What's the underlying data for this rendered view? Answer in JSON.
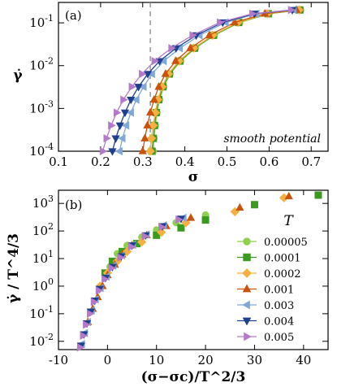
{
  "chart_data": [
    {
      "type": "line",
      "panel_label": "(a)",
      "annotation": "smooth potential",
      "xlabel": "σ",
      "ylabel": "γ̇",
      "x_scale": "linear",
      "y_scale": "log",
      "xlim": [
        0.1,
        0.74
      ],
      "ylim": [
        0.0001,
        0.3
      ],
      "x_ticks": [
        "0.1",
        "0.2",
        "0.3",
        "0.4",
        "0.5",
        "0.6",
        "0.7"
      ],
      "y_ticks": [
        "10^-4",
        "10^-3",
        "10^-2",
        "10^-1"
      ],
      "dashed_vline_x": 0.318,
      "series": [
        {
          "name": "0.00005",
          "color": "#8fd14f",
          "marker": "circle",
          "x": [
            0.325,
            0.327,
            0.33,
            0.334,
            0.34,
            0.35,
            0.365,
            0.39,
            0.425,
            0.47,
            0.53,
            0.6,
            0.675
          ],
          "y": [
            0.0001,
            0.0002,
            0.0004,
            0.0008,
            0.0016,
            0.0032,
            0.0064,
            0.0128,
            0.0256,
            0.0512,
            0.1024,
            0.1638,
            0.2
          ]
        },
        {
          "name": "0.0001",
          "color": "#3a9a1e",
          "marker": "square",
          "x": [
            0.322,
            0.325,
            0.328,
            0.332,
            0.338,
            0.348,
            0.363,
            0.388,
            0.423,
            0.468,
            0.528,
            0.598,
            0.673
          ],
          "y": [
            0.0001,
            0.0002,
            0.0004,
            0.0008,
            0.0016,
            0.0032,
            0.0064,
            0.0128,
            0.0256,
            0.0512,
            0.1024,
            0.1638,
            0.2
          ]
        },
        {
          "name": "0.0002",
          "color": "#f5b041",
          "marker": "diamond",
          "x": [
            0.318,
            0.321,
            0.325,
            0.33,
            0.336,
            0.346,
            0.361,
            0.386,
            0.421,
            0.466,
            0.526,
            0.596,
            0.671
          ],
          "y": [
            0.0001,
            0.0002,
            0.0004,
            0.0008,
            0.0016,
            0.0032,
            0.0064,
            0.0128,
            0.0256,
            0.0512,
            0.1024,
            0.1638,
            0.2
          ]
        },
        {
          "name": "0.001",
          "color": "#c8520e",
          "marker": "triangle-up",
          "x": [
            0.3,
            0.305,
            0.311,
            0.318,
            0.327,
            0.338,
            0.354,
            0.378,
            0.413,
            0.458,
            0.518,
            0.59,
            0.665
          ],
          "y": [
            0.0001,
            0.0002,
            0.0004,
            0.0008,
            0.0016,
            0.0032,
            0.0064,
            0.0128,
            0.0256,
            0.0512,
            0.1024,
            0.1638,
            0.2
          ]
        },
        {
          "name": "0.003",
          "color": "#7fa8d6",
          "marker": "triangle-left",
          "x": [
            0.245,
            0.252,
            0.261,
            0.272,
            0.285,
            0.302,
            0.322,
            0.35,
            0.388,
            0.435,
            0.497,
            0.57,
            0.658
          ],
          "y": [
            0.0001,
            0.0002,
            0.0004,
            0.0008,
            0.0016,
            0.0032,
            0.0064,
            0.0128,
            0.0256,
            0.0512,
            0.1024,
            0.1638,
            0.2
          ]
        },
        {
          "name": "0.004",
          "color": "#1f3f8f",
          "marker": "triangle-down",
          "x": [
            0.228,
            0.236,
            0.246,
            0.258,
            0.272,
            0.29,
            0.312,
            0.34,
            0.379,
            0.427,
            0.49,
            0.565,
            0.655
          ],
          "y": [
            0.0001,
            0.0002,
            0.0004,
            0.0008,
            0.0016,
            0.0032,
            0.0064,
            0.0128,
            0.0256,
            0.0512,
            0.1024,
            0.1638,
            0.2
          ]
        },
        {
          "name": "0.005",
          "color": "#b579c9",
          "marker": "triangle-right",
          "x": [
            0.205,
            0.214,
            0.225,
            0.238,
            0.254,
            0.274,
            0.298,
            0.328,
            0.368,
            0.418,
            0.483,
            0.56,
            0.652
          ],
          "y": [
            0.0001,
            0.0002,
            0.0004,
            0.0008,
            0.0016,
            0.0032,
            0.0064,
            0.0128,
            0.0256,
            0.0512,
            0.1024,
            0.1638,
            0.2
          ]
        }
      ]
    },
    {
      "type": "scatter",
      "panel_label": "(b)",
      "xlabel": "(σ−σc)/T^2/3",
      "ylabel": "γ̇ / T^4/3",
      "x_scale": "linear",
      "y_scale": "log",
      "xlim": [
        -10,
        45
      ],
      "ylim": [
        0.005,
        3000
      ],
      "x_ticks": [
        "-10",
        "0",
        "10",
        "20",
        "30",
        "40"
      ],
      "y_ticks": [
        "10^-2",
        "10^-1",
        "10^0",
        "10^1",
        "10^2",
        "10^3"
      ],
      "legend_title": "T",
      "legend_position": "right",
      "series": [
        {
          "name": "0.00005",
          "color": "#8fd14f",
          "marker": "circle",
          "x": [
            0.5,
            2,
            4,
            7,
            10,
            14,
            20
          ],
          "y": [
            5,
            15,
            30,
            60,
            110,
            200,
            380
          ]
        },
        {
          "name": "0.0001",
          "color": "#3a9a1e",
          "marker": "square",
          "x": [
            -0.5,
            1,
            3,
            6,
            10,
            15,
            20,
            30,
            43
          ],
          "y": [
            3,
            8,
            18,
            35,
            70,
            130,
            250,
            900,
            2000
          ]
        },
        {
          "name": "0.0002",
          "color": "#f5b041",
          "marker": "diamond",
          "x": [
            -1.5,
            0,
            2,
            4,
            7,
            11,
            16,
            26,
            36
          ],
          "y": [
            1,
            3,
            8,
            18,
            40,
            90,
            200,
            500,
            1600
          ]
        },
        {
          "name": "0.001",
          "color": "#c8520e",
          "marker": "triangle-up",
          "x": [
            -4,
            -3,
            -2,
            -1,
            0,
            1.5,
            3,
            5,
            8,
            12,
            17,
            27,
            37
          ],
          "y": [
            0.05,
            0.15,
            0.4,
            1,
            2.5,
            6,
            14,
            30,
            70,
            150,
            300,
            700,
            1800
          ]
        },
        {
          "name": "0.003",
          "color": "#7fa8d6",
          "marker": "triangle-left",
          "x": [
            -5.2,
            -4.6,
            -4,
            -3.2,
            -2.4,
            -1.4,
            -0.2,
            1.2,
            3,
            5.2,
            8,
            11.5,
            15.5
          ],
          "y": [
            0.008,
            0.02,
            0.05,
            0.13,
            0.33,
            0.85,
            2.2,
            5.5,
            13,
            32,
            75,
            160,
            300
          ]
        },
        {
          "name": "0.004",
          "color": "#1f3f8f",
          "marker": "triangle-down",
          "x": [
            -5.4,
            -4.8,
            -4.2,
            -3.4,
            -2.6,
            -1.6,
            -0.4,
            1,
            2.8,
            5,
            7.8,
            11.2,
            15
          ],
          "y": [
            0.007,
            0.018,
            0.045,
            0.12,
            0.3,
            0.8,
            2,
            5,
            12,
            30,
            70,
            150,
            280
          ]
        },
        {
          "name": "0.005",
          "color": "#b579c9",
          "marker": "triangle-right",
          "x": [
            -5.6,
            -5,
            -4.4,
            -3.6,
            -2.8,
            -1.8,
            -0.6,
            0.8,
            2.6,
            4.8,
            7.6,
            11,
            14.5
          ],
          "y": [
            0.006,
            0.016,
            0.04,
            0.1,
            0.27,
            0.7,
            1.8,
            4.5,
            11,
            27,
            65,
            140,
            260
          ]
        }
      ]
    }
  ]
}
